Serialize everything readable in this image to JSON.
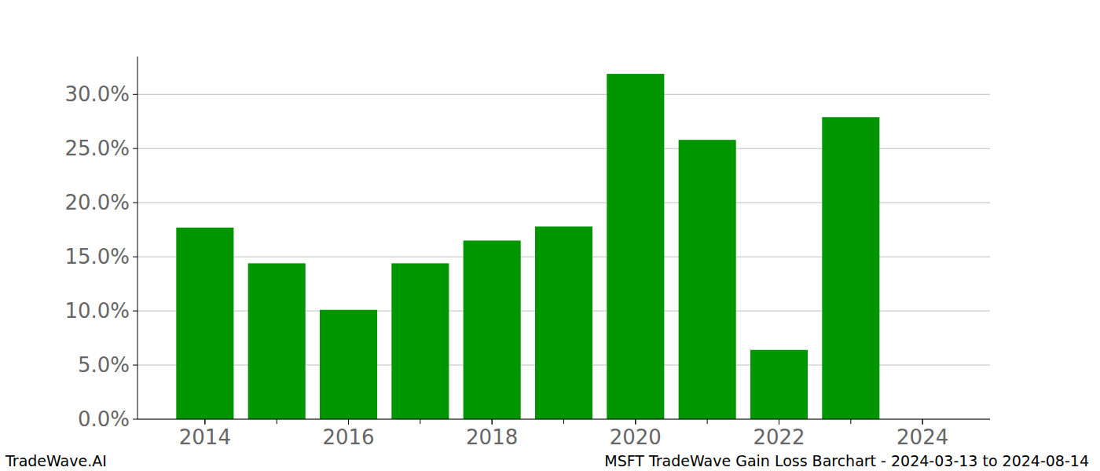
{
  "chart_data": {
    "type": "bar",
    "title": "MSFT TradeWave Gain Loss Barchart - 2024-03-13 to 2024-08-14",
    "source": "TradeWave.AI",
    "x": [
      2014,
      2015,
      2016,
      2017,
      2018,
      2019,
      2020,
      2021,
      2022,
      2023,
      2024
    ],
    "values": [
      17.7,
      14.4,
      10.1,
      14.4,
      16.5,
      17.8,
      31.9,
      25.8,
      6.4,
      27.9,
      0
    ],
    "color": "#009600",
    "xlim": [
      2013.06,
      2024.94
    ],
    "xticks": [
      2014,
      2016,
      2018,
      2020,
      2022,
      2024
    ],
    "ylim": [
      0,
      33.5
    ],
    "yticks": [
      {
        "value": 0,
        "label": "0.0%"
      },
      {
        "value": 5,
        "label": "5.0%"
      },
      {
        "value": 10,
        "label": "10.0%"
      },
      {
        "value": 15,
        "label": "15.0%"
      },
      {
        "value": 20,
        "label": "20.0%"
      },
      {
        "value": 25,
        "label": "25.0%"
      },
      {
        "value": 30,
        "label": "30.0%"
      }
    ],
    "grid": true
  }
}
